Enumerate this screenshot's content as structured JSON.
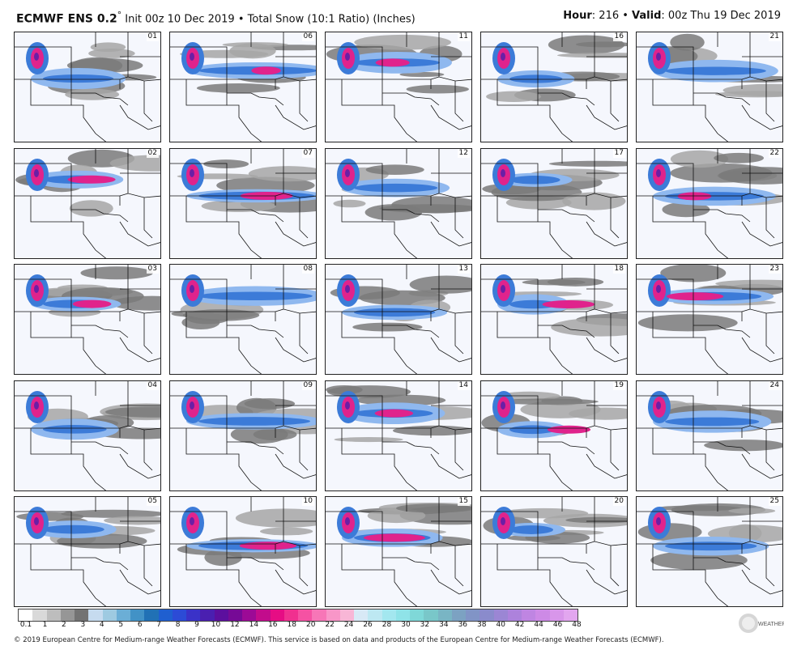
{
  "header": {
    "model": "ECMWF ENS 0.2",
    "degree": "°",
    "rest": " Init 00z 10 Dec 2019 • Total Snow (10:1 Ratio) (Inches)",
    "hour_label": "Hour",
    "hour_value": ": 216 • ",
    "valid_label": "Valid",
    "valid_value": ": 00z Thu 19 Dec 2019"
  },
  "members": [
    "01",
    "06",
    "11",
    "16",
    "21",
    "02",
    "07",
    "12",
    "17",
    "22",
    "03",
    "08",
    "13",
    "18",
    "23",
    "04",
    "09",
    "14",
    "19",
    "24",
    "05",
    "10",
    "15",
    "20",
    "25"
  ],
  "legend": {
    "colors": [
      "#ffffff",
      "#d9d9d9",
      "#bdbdbd",
      "#969696",
      "#737373",
      "#c6dbef",
      "#9ecae1",
      "#6baed6",
      "#4292c6",
      "#2171b5",
      "#1f5fd0",
      "#2c4bd6",
      "#3a32c8",
      "#4a1fb0",
      "#5c0f9e",
      "#760a96",
      "#9c0a96",
      "#c20c8c",
      "#e60d84",
      "#f0308f",
      "#f552a3",
      "#f776b7",
      "#f896c8",
      "#f8b6d6",
      "#d8e9f6",
      "#bde8f2",
      "#a3e7ef",
      "#8fe3e8",
      "#7fd8d8",
      "#79c7c9",
      "#79b5c4",
      "#7ca2c2",
      "#8194c6",
      "#8a8bcc",
      "#9b86d4",
      "#ad82dc",
      "#bf85e2",
      "#cd8ae6",
      "#d896ea",
      "#e2a6ef"
    ],
    "ticks": [
      "0.1",
      "1",
      "2",
      "3",
      "4",
      "5",
      "6",
      "7",
      "8",
      "9",
      "10",
      "12",
      "14",
      "16",
      "18",
      "20",
      "22",
      "24",
      "26",
      "28",
      "30",
      "32",
      "34",
      "36",
      "38",
      "40",
      "42",
      "44",
      "46",
      "48"
    ]
  },
  "footer": "© 2019 European Centre for Medium-range Weather Forecasts (ECMWF). This service is based on data and products of the European Centre for Medium-range Weather Forecasts (ECMWF).",
  "logo_text": "WEATHERBELL",
  "colors": {
    "background": "#f5f7fd",
    "snow_light": "#8fb8ef",
    "snow_mid": "#3c7bd8",
    "snow_heavy": "#e0238c",
    "snow_extreme": "#6a1fa6",
    "gray": "#8c8c8c"
  }
}
